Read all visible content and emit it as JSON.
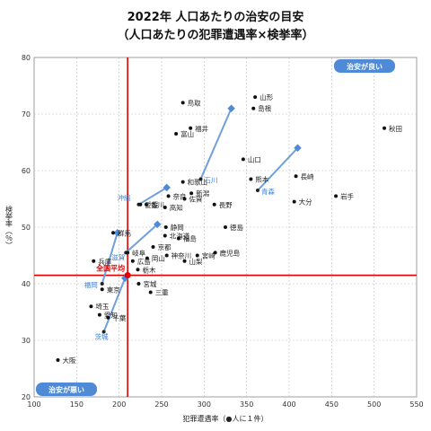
{
  "chart_data": {
    "type": "scatter",
    "title": "2022年 人口あたりの治安の目安",
    "subtitle": "（人口あたりの犯罪遭遇率×検挙率）",
    "xlabel": "犯罪遭遇率（●人に１件）",
    "ylabel": "検挙率（％）",
    "xlim": [
      100,
      550
    ],
    "ylim": [
      20,
      80
    ],
    "xticks": [
      100,
      150,
      200,
      250,
      300,
      350,
      400,
      450,
      500,
      550
    ],
    "yticks": [
      20,
      30,
      40,
      50,
      60,
      70,
      80
    ],
    "grid": "dashed",
    "average": {
      "label": "全国平均",
      "x": 210,
      "y": 41.5
    },
    "badge_good": "治安が良い",
    "badge_bad": "治安が悪い",
    "points": [
      {
        "name": "鳥取",
        "x": 275,
        "y": 72
      },
      {
        "name": "山形",
        "x": 360,
        "y": 73
      },
      {
        "name": "島根",
        "x": 358,
        "y": 71
      },
      {
        "name": "秋田",
        "x": 512,
        "y": 67.5
      },
      {
        "name": "福井",
        "x": 284,
        "y": 67.5
      },
      {
        "name": "富山",
        "x": 267,
        "y": 66.5
      },
      {
        "name": "山口",
        "x": 346,
        "y": 62
      },
      {
        "name": "和歌山",
        "x": 275,
        "y": 58
      },
      {
        "name": "熊本",
        "x": 355,
        "y": 58.5
      },
      {
        "name": "長崎",
        "x": 408,
        "y": 59
      },
      {
        "name": "奈良",
        "x": 258,
        "y": 55.5
      },
      {
        "name": "新潟",
        "x": 285,
        "y": 56
      },
      {
        "name": "岩手",
        "x": 455,
        "y": 55.5
      },
      {
        "name": "香川",
        "x": 232,
        "y": 54
      },
      {
        "name": "高知",
        "x": 254,
        "y": 53.5
      },
      {
        "name": "佐賀",
        "x": 277,
        "y": 55
      },
      {
        "name": "長野",
        "x": 312,
        "y": 54
      },
      {
        "name": "大分",
        "x": 406,
        "y": 54.5
      },
      {
        "name": "愛媛",
        "x": 225,
        "y": 54
      },
      {
        "name": "静岡",
        "x": 255,
        "y": 50
      },
      {
        "name": "徳島",
        "x": 325,
        "y": 50
      },
      {
        "name": "北海道",
        "x": 254,
        "y": 48.5
      },
      {
        "name": "福島",
        "x": 270,
        "y": 48
      },
      {
        "name": "群馬",
        "x": 193,
        "y": 49
      },
      {
        "name": "京都",
        "x": 240,
        "y": 46.5
      },
      {
        "name": "岐阜",
        "x": 210,
        "y": 45.5
      },
      {
        "name": "神奈川",
        "x": 256,
        "y": 45
      },
      {
        "name": "宮崎",
        "x": 292,
        "y": 45
      },
      {
        "name": "鹿児島",
        "x": 313,
        "y": 45.5
      },
      {
        "name": "広島",
        "x": 216,
        "y": 44
      },
      {
        "name": "岡山",
        "x": 233,
        "y": 44.5
      },
      {
        "name": "山梨",
        "x": 277,
        "y": 44
      },
      {
        "name": "兵庫",
        "x": 170,
        "y": 44
      },
      {
        "name": "栃木",
        "x": 222,
        "y": 42.5
      },
      {
        "name": "宮城",
        "x": 223,
        "y": 40
      },
      {
        "name": "東京",
        "x": 180,
        "y": 39
      },
      {
        "name": "三重",
        "x": 237,
        "y": 38.5
      },
      {
        "name": "埼玉",
        "x": 167,
        "y": 36
      },
      {
        "name": "愛知",
        "x": 177,
        "y": 34.5
      },
      {
        "name": "千葉",
        "x": 187,
        "y": 34
      },
      {
        "name": "大阪",
        "x": 128,
        "y": 26.5
      }
    ],
    "highlighted": [
      {
        "name": "石川",
        "from": [
          296,
          58.5
        ],
        "to": [
          332,
          71
        ]
      },
      {
        "name": "青森",
        "from": [
          363,
          56.5
        ],
        "to": [
          410,
          64
        ]
      },
      {
        "name": "沖縄",
        "from": [
          223,
          54
        ],
        "to": [
          256,
          57
        ]
      },
      {
        "name": "滋賀",
        "from": [
          208,
          45.5
        ],
        "to": [
          245,
          50.5
        ]
      },
      {
        "name": "福岡",
        "from": [
          180,
          40
        ],
        "to": [
          198,
          49
        ]
      },
      {
        "name": "茨城",
        "from": [
          182,
          31.5
        ],
        "to": [
          207,
          41
        ]
      }
    ]
  }
}
